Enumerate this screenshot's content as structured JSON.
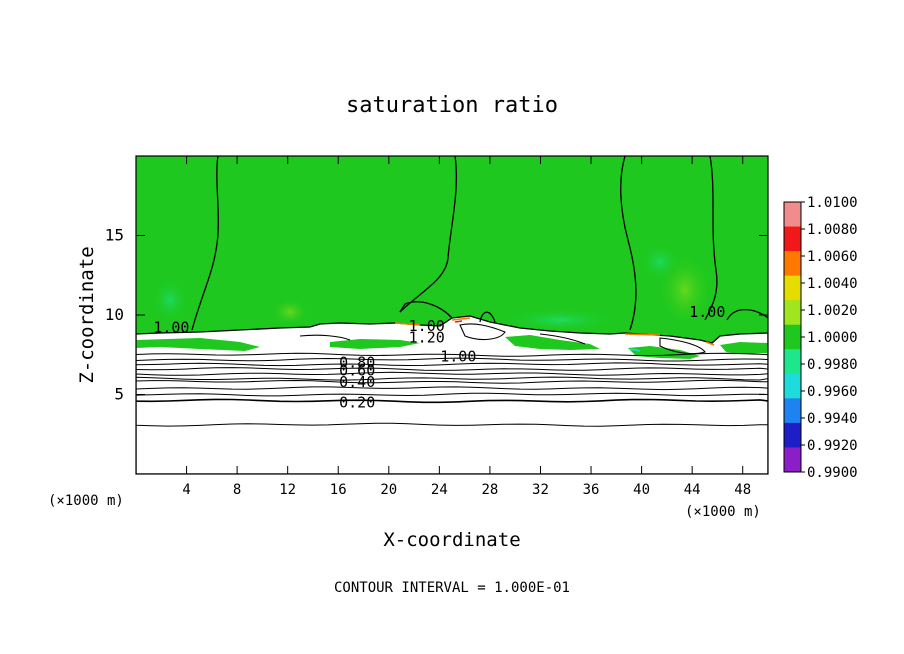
{
  "chart_data": {
    "type": "heatmap",
    "title": "saturation ratio",
    "xlabel": "X-coordinate",
    "ylabel": "Z-coordinate",
    "x_unit_left": "(×1000 m)",
    "x_unit_right": "(×1000 m)",
    "xlim": [
      0,
      50
    ],
    "ylim": [
      0,
      20
    ],
    "x_ticks": [
      4,
      8,
      12,
      16,
      20,
      24,
      28,
      32,
      36,
      40,
      44,
      48
    ],
    "y_ticks": [
      5,
      10,
      15
    ],
    "footer": "CONTOUR INTERVAL = 1.000E-01",
    "colorbar": {
      "ticks": [
        "1.0100",
        "1.0080",
        "1.0060",
        "1.0040",
        "1.0020",
        "1.0000",
        "0.9980",
        "0.9960",
        "0.9940",
        "0.9920",
        "0.9900"
      ],
      "colors": [
        "#f08c8c",
        "#f01818",
        "#ff7800",
        "#e6dc00",
        "#a0e61e",
        "#1ec81e",
        "#1ee68c",
        "#1edcdc",
        "#1e82f0",
        "#1e1ec8",
        "#8c1ec8"
      ]
    },
    "contour_labels": [
      {
        "text": "1.00",
        "x": 2.8,
        "z": 9.2
      },
      {
        "text": "1.00",
        "x": 23.0,
        "z": 9.3
      },
      {
        "text": "1.20",
        "x": 23.0,
        "z": 8.6
      },
      {
        "text": "1.00",
        "x": 25.5,
        "z": 7.4
      },
      {
        "text": "1.00",
        "x": 45.2,
        "z": 10.2
      },
      {
        "text": "0.80",
        "x": 17.5,
        "z": 7.0
      },
      {
        "text": "0.60",
        "x": 17.5,
        "z": 6.5
      },
      {
        "text": "0.40",
        "x": 17.5,
        "z": 5.8
      },
      {
        "text": "0.20",
        "x": 17.5,
        "z": 4.5
      }
    ],
    "contour_levels_z": [
      3.1,
      4.6,
      5.0,
      5.4,
      5.8,
      6.0,
      6.3,
      6.6,
      6.9,
      7.2,
      7.5
    ]
  }
}
